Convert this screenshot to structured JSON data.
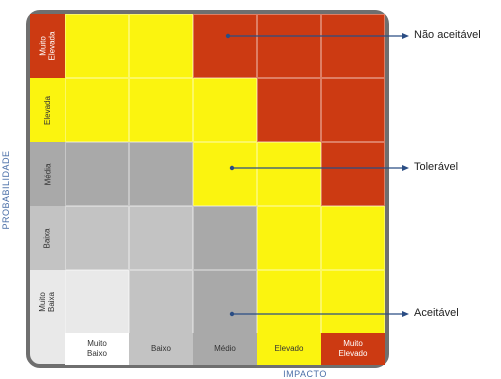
{
  "matrix": {
    "y_axis_label": "PROBABILIDADE",
    "x_axis_label": "IMPACTO",
    "probability_levels": [
      "Muito\nElevada",
      "Elevada",
      "Média",
      "Baixa",
      "Muito\nBaixa"
    ],
    "impact_levels": [
      "Muito\nBaixo",
      "Baixo",
      "Médio",
      "Elevado",
      "Muito\nElevado"
    ],
    "colors": {
      "red": "#cc3a12",
      "yellow": "#fbf40f",
      "gray_dark": "#a9a9a9",
      "gray_mid": "#c3c3c3",
      "gray_light": "#e9e9e9",
      "white": "#ffffff"
    }
  },
  "callouts": {
    "nao_aceitavel": "Não aceitável",
    "toleravel": "Tolerável",
    "aceitavel": "Aceitável"
  }
}
